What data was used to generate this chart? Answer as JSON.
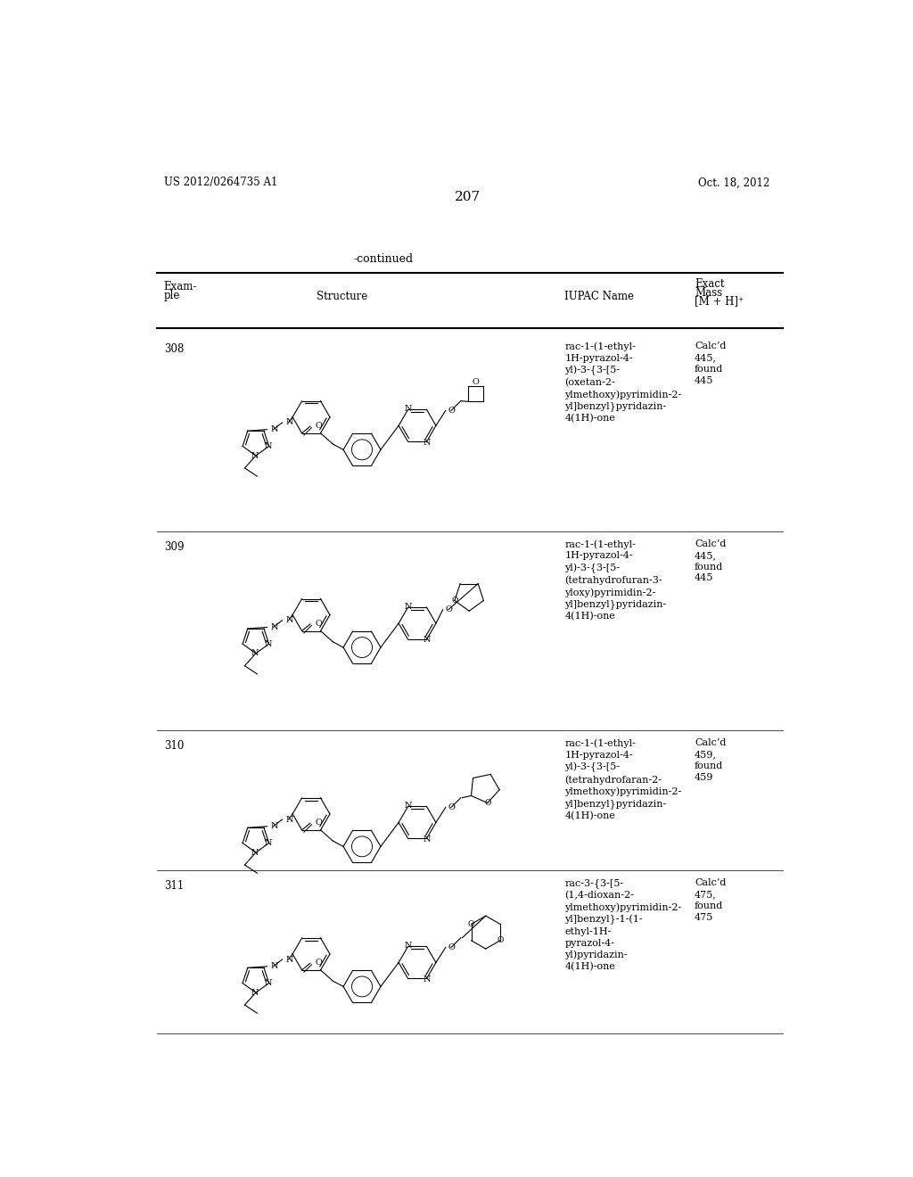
{
  "page_number": "207",
  "patent_number": "US 2012/0264735 A1",
  "patent_date": "Oct. 18, 2012",
  "continued_label": "-continued",
  "rows": [
    {
      "example": "308",
      "iupac": "rac-1-(1-ethyl-\n1H-pyrazol-4-\nyl)-3-{3-[5-\n(oxetan-2-\nylmethoxy)pyrimidin-2-\nyl]benzyl}pyridazin-\n4(1H)-one",
      "mass": "Calc’d\n445,\nfound\n445"
    },
    {
      "example": "309",
      "iupac": "rac-1-(1-ethyl-\n1H-pyrazol-4-\nyl)-3-{3-[5-\n(tetrahydrofuran-3-\nyloxy)pyrimidin-2-\nyl]benzyl}pyridazin-\n4(1H)-one",
      "mass": "Calc’d\n445,\nfound\n445"
    },
    {
      "example": "310",
      "iupac": "rac-1-(1-ethyl-\n1H-pyrazol-4-\nyl)-3-{3-[5-\n(tetrahydrofaran-2-\nylmethoxy)pyrimidin-2-\nyl]benzyl}pyridazin-\n4(1H)-one",
      "mass": "Calc’d\n459,\nfound\n459"
    },
    {
      "example": "311",
      "iupac": "rac-3-{3-[5-\n(1,4-dioxan-2-\nylmethoxy)pyrimidin-2-\nyl]benzyl}-1-(1-\nethyl-1H-\npyrazol-4-\nyl)pyridazin-\n4(1H)-one",
      "mass": "Calc’d\n475,\nfound\n475"
    }
  ],
  "bg_color": "#ffffff",
  "text_color": "#000000"
}
